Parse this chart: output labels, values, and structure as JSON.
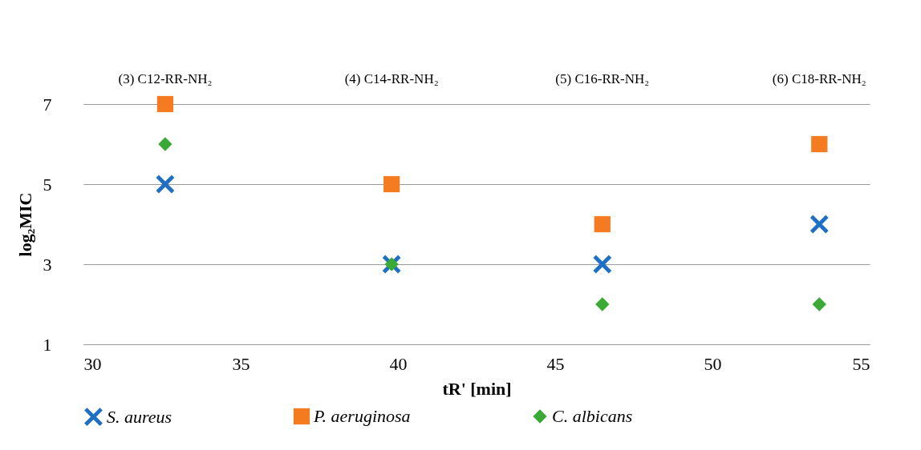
{
  "chart_data": {
    "type": "scatter",
    "xlabel": "tR' [min]",
    "ylabel": "log₂MIC",
    "x": [
      32.6,
      39.8,
      46.5,
      53.4
    ],
    "series": [
      {
        "name": "S. aureus",
        "color": "#1f6fc5",
        "marker": "cross",
        "values": [
          5,
          3,
          3,
          4
        ]
      },
      {
        "name": "P. aeruginosa",
        "color": "#f47b20",
        "marker": "square",
        "values": [
          7,
          5,
          4,
          6
        ]
      },
      {
        "name": "C. albicans",
        "color": "#3aa935",
        "marker": "diamond",
        "values": [
          6,
          3,
          2,
          2
        ]
      }
    ],
    "annotations": [
      "(3) C12-RR-NH₂",
      "(4) C14-RR-NH₂",
      "(5) C16-RR-NH₂",
      "(6) C18-RR-NH₂"
    ],
    "xlim": [
      30,
      55
    ],
    "xticks": [
      30,
      35,
      40,
      45,
      50,
      55
    ],
    "ylim": [
      1,
      7
    ],
    "yticks": [
      1,
      3,
      5,
      7
    ],
    "grid": "y",
    "legend": "bottom"
  }
}
